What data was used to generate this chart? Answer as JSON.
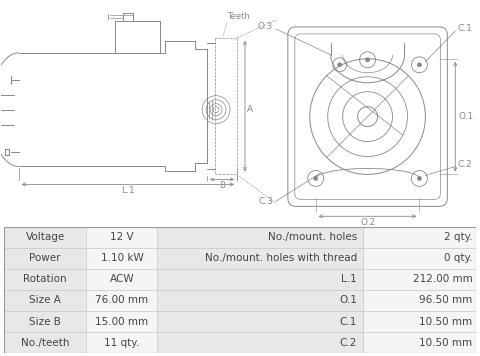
{
  "table_data": [
    [
      "Voltage",
      "12 V",
      "No./mount. holes",
      "2 qty."
    ],
    [
      "Power",
      "1.10 kW",
      "No./mount. holes with thread",
      "0 qty."
    ],
    [
      "Rotation",
      "ACW",
      "L.1",
      "212.00 mm"
    ],
    [
      "Size A",
      "76.00 mm",
      "O.1",
      "96.50 mm"
    ],
    [
      "Size B",
      "15.00 mm",
      "C.1",
      "10.50 mm"
    ],
    [
      "No./teeth",
      "11 qty.",
      "C.2",
      "10.50 mm"
    ]
  ],
  "lc": "#888888",
  "lc2": "#aaaaaa",
  "tc": "#444444",
  "bg": "#ffffff",
  "tbg1": "#e8e8e8",
  "tbg2": "#f5f5f5",
  "tbc": "#cccccc"
}
